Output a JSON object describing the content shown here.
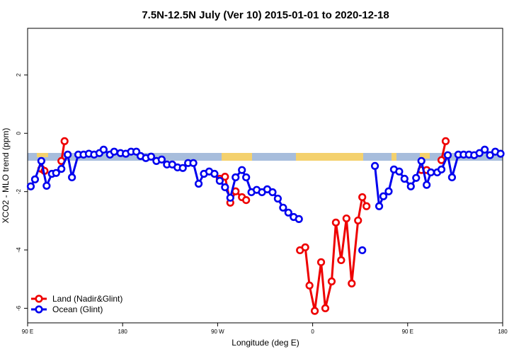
{
  "chart_data": {
    "type": "line",
    "title": "7.5N-12.5N July (Ver 10)   2015-01-01 to 2020-12-18",
    "x_label": "Longitude (deg E)",
    "y_label": "XCO2 - MLO trend (ppm)",
    "xlim": [
      90,
      540
    ],
    "xticks": [
      {
        "value": 90,
        "label": "90 E"
      },
      180,
      {
        "value": 270,
        "label": "90 W"
      },
      {
        "value": 360,
        "label": "0"
      },
      {
        "value": 450,
        "label": "90 E"
      },
      {
        "value": 540,
        "label": "180"
      }
    ],
    "ylim": [
      -6.5,
      3.6
    ],
    "yticks": [
      2,
      0,
      -2,
      -4,
      -6
    ],
    "legend": "bottom-left",
    "series": [
      {
        "name": "Land (Nadir&Glint)",
        "color": "#ee0000",
        "x": [
          103,
          106,
          null,
          122,
          125,
          null,
          272,
          277,
          282,
          287,
          293,
          297,
          null,
          348,
          353,
          357,
          362,
          368,
          372,
          378,
          382,
          387,
          392,
          397,
          403,
          407,
          411,
          null,
          463,
          468,
          null,
          482,
          486
        ],
        "values": [
          -1.22,
          -1.29,
          null,
          -0.95,
          -0.27,
          null,
          -1.56,
          -1.49,
          -2.38,
          -1.99,
          -2.19,
          -2.29,
          null,
          -4.01,
          -3.91,
          -5.22,
          -6.09,
          -4.42,
          -6.0,
          -5.08,
          -3.06,
          -4.35,
          -2.92,
          -5.15,
          -2.99,
          -2.19,
          -2.5,
          null,
          -1.26,
          -1.26,
          null,
          -0.92,
          -0.27
        ]
      },
      {
        "name": "Ocean (Glint)",
        "color": "#0000ee",
        "x": [
          93,
          97,
          103,
          108,
          113,
          117,
          122,
          128,
          132,
          138,
          143,
          148,
          153,
          158,
          162,
          168,
          172,
          178,
          183,
          188,
          193,
          197,
          202,
          207,
          212,
          217,
          222,
          227,
          232,
          237,
          242,
          247,
          252,
          257,
          262,
          267,
          272,
          277,
          282,
          287,
          293,
          297,
          302,
          307,
          312,
          317,
          322,
          327,
          332,
          337,
          342,
          347,
          null,
          407,
          null,
          419,
          423,
          427,
          432,
          437,
          442,
          447,
          453,
          458,
          463,
          468,
          472,
          478,
          482,
          488,
          492,
          498,
          503,
          508,
          513,
          518,
          523,
          528,
          533,
          538
        ],
        "values": [
          -1.82,
          -1.58,
          -0.95,
          -1.8,
          -1.39,
          -1.36,
          -1.22,
          -0.73,
          -1.51,
          -0.73,
          -0.73,
          -0.7,
          -0.73,
          -0.68,
          -0.56,
          -0.73,
          -0.63,
          -0.68,
          -0.7,
          -0.63,
          -0.63,
          -0.78,
          -0.85,
          -0.8,
          -0.95,
          -0.9,
          -1.07,
          -1.07,
          -1.17,
          -1.19,
          -1.02,
          -1.02,
          -1.73,
          -1.39,
          -1.31,
          -1.39,
          -1.63,
          -1.85,
          -2.21,
          -1.51,
          -1.26,
          -1.51,
          -2.02,
          -1.94,
          -2.02,
          -1.92,
          -2.02,
          -2.24,
          -2.55,
          -2.72,
          -2.87,
          -2.94,
          null,
          -4.01,
          null,
          -1.12,
          -2.5,
          -2.16,
          -1.99,
          -1.24,
          -1.31,
          -1.56,
          -1.82,
          -1.53,
          -0.95,
          -1.77,
          -1.34,
          -1.34,
          -1.24,
          -0.75,
          -1.51,
          -0.73,
          -0.73,
          -0.73,
          -0.75,
          -0.68,
          -0.56,
          -0.75,
          -0.63,
          -0.7
        ]
      }
    ]
  }
}
